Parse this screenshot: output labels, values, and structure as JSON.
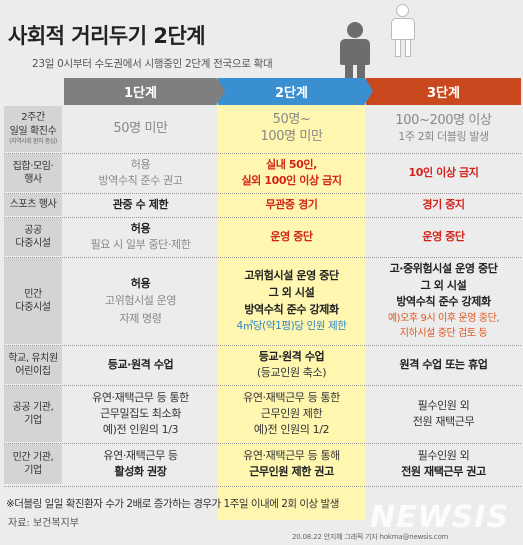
{
  "title": "사회적 거리두기 2단계",
  "subtitle": "23일 0시부터 수도권에서 시행중인 2단계 전국으로 확대",
  "headers": {
    "stage1": "1단계",
    "stage2": "2단계",
    "stage3": "3단계"
  },
  "rows": [
    {
      "label": [
        "2주간",
        "일일 확진수"
      ],
      "label_small": "(지역사회 환자 중심)",
      "c1": [
        "50명 미만"
      ],
      "c2": [
        "50명~",
        "100명 미만"
      ],
      "c3": [
        "100~200명 이상",
        "1주 2회 더블링 발생"
      ]
    },
    {
      "label": [
        "집합·모임·",
        "행사"
      ],
      "c1": [
        "허용",
        "방역수칙 준수 권고"
      ],
      "c2": [
        "실내 50인,",
        "실외 100인 이상 금지"
      ],
      "c3": [
        "10인 이상 금지"
      ]
    },
    {
      "label": [
        "스포츠 행사"
      ],
      "c1": [
        "관중 수 제한"
      ],
      "c2": [
        "무관중 경기"
      ],
      "c3": [
        "경기 중지"
      ]
    },
    {
      "label": [
        "공공",
        "다중시설"
      ],
      "c1": [
        "허용",
        "필요 시 일부 중단·제한"
      ],
      "c2": [
        "운영 중단"
      ],
      "c3": [
        "운영 중단"
      ]
    },
    {
      "label": [
        "민간",
        "다중시설"
      ],
      "c1": [
        "허용",
        "고위험시설 운영",
        "자제 명령"
      ],
      "c2": [
        "고위험시설 운영 중단",
        "그 외 시설",
        "방역수칙 준수 강제화",
        "4㎡당(약1평)당 인원 제한"
      ],
      "c3": [
        "고·중위험시설 운영 중단",
        "그 외 시설",
        "방역수칙 준수 강제화",
        "예)오후 9시 이후 운영 중단,",
        "지하시설 중단 검토 등"
      ]
    },
    {
      "label": [
        "학교, 유치원",
        "어린이집"
      ],
      "c1": [
        "등교·원격 수업"
      ],
      "c2": [
        "등교·원격 수업",
        "(등교인원 축소)"
      ],
      "c3": [
        "원격 수업 또는 휴업"
      ]
    },
    {
      "label": [
        "공공 기관,",
        "기업"
      ],
      "c1": [
        "유연·재택근무 등 통한",
        "근무밀집도 최소화",
        "예)전 인원의 1/3"
      ],
      "c2": [
        "유연·재택근무 등 통한",
        "근무인원 제한",
        "예)전 인원의 1/2"
      ],
      "c3": [
        "필수인원 외",
        "전원 재택근무"
      ]
    },
    {
      "label": [
        "민간 기관,",
        "기업"
      ],
      "c1": [
        "유연·재택근무 등",
        "활성화 권장"
      ],
      "c2": [
        "유연·재택근무 등 통해",
        "근무인원 제한 권고"
      ],
      "c3": [
        "필수인원 외",
        "전원 재택근무 권고"
      ]
    }
  ],
  "footnote": "※더블링 일일 확진환자 수가 2배로 증가하는 경우가 1주일 이내에 2회 이상 발생",
  "source": "자료: 보건복지부",
  "credit": "20.08.22 안지혜 그래픽 기자 hokma@newsis.com",
  "watermark": "NEWSIS",
  "colors": {
    "stage1": "#7f7f7f",
    "stage2": "#3a8fd0",
    "stage3": "#c9481d",
    "highlight": "#fff6b0",
    "red": "#d2231b"
  }
}
